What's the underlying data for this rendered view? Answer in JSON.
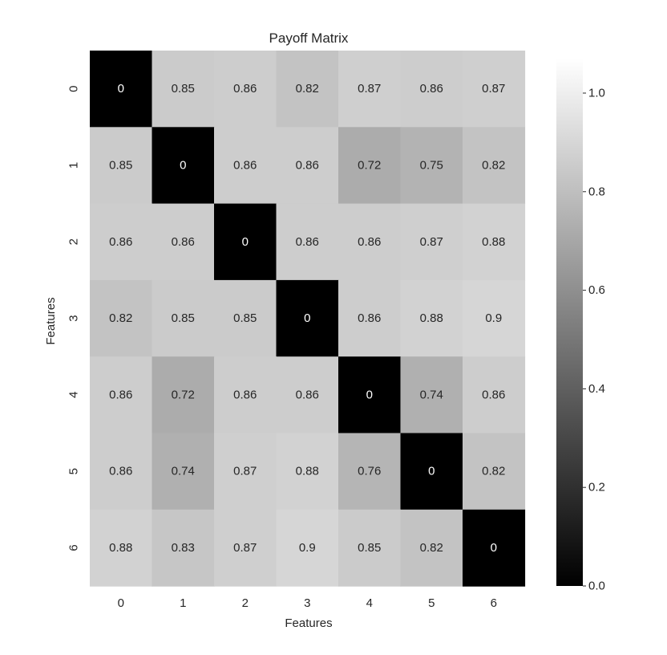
{
  "chart_data": {
    "type": "heatmap",
    "title": "Payoff Matrix",
    "xlabel": "Features",
    "ylabel": "Features",
    "x_categories": [
      "0",
      "1",
      "2",
      "3",
      "4",
      "5",
      "6"
    ],
    "y_categories": [
      "0",
      "1",
      "2",
      "3",
      "4",
      "5",
      "6"
    ],
    "values": [
      [
        0,
        0.85,
        0.86,
        0.82,
        0.87,
        0.86,
        0.87
      ],
      [
        0.85,
        0,
        0.86,
        0.86,
        0.72,
        0.75,
        0.82
      ],
      [
        0.86,
        0.86,
        0,
        0.86,
        0.86,
        0.87,
        0.88
      ],
      [
        0.82,
        0.85,
        0.85,
        0,
        0.86,
        0.88,
        0.9
      ],
      [
        0.86,
        0.72,
        0.86,
        0.86,
        0,
        0.74,
        0.86
      ],
      [
        0.86,
        0.74,
        0.87,
        0.88,
        0.76,
        0,
        0.82
      ],
      [
        0.88,
        0.83,
        0.87,
        0.9,
        0.85,
        0.82,
        0
      ]
    ],
    "colormap": "gray",
    "colorbar": {
      "range": [
        0,
        1.07
      ],
      "ticks": [
        0.0,
        0.2,
        0.4,
        0.6,
        0.8,
        1.0
      ],
      "tick_labels": [
        "0.0",
        "0.2",
        "0.4",
        "0.6",
        "0.8",
        "1.0"
      ]
    },
    "annotated": true,
    "grid": false
  }
}
